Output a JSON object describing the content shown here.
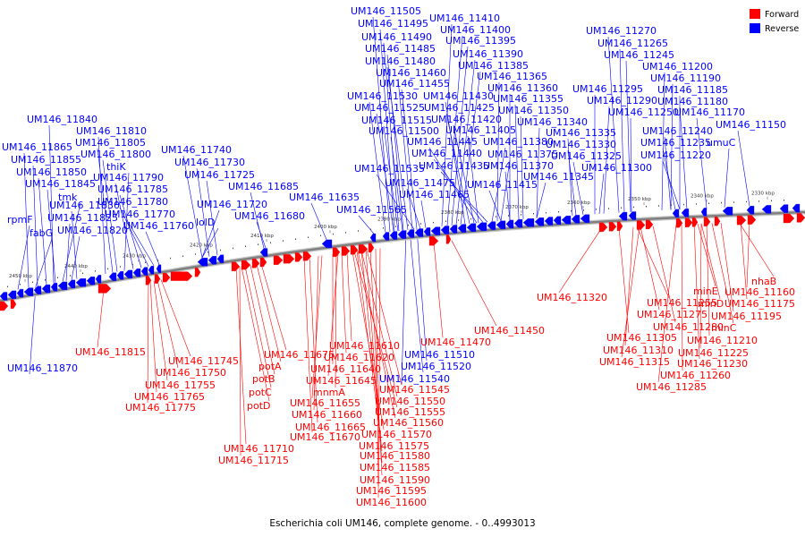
{
  "title": "Escherichia coli UM146, complete genome. - 0..4993013",
  "legend": {
    "forward": "Forward",
    "reverse": "Reverse"
  },
  "colors": {
    "forward": "#ff0000",
    "reverse": "#0000ff",
    "backbone": "#808080"
  },
  "ticks": [
    "2450 kbp",
    "2440 kbp",
    "2430 kbp",
    "2420 kbp",
    "2410 kbp",
    "2400 kbp",
    "2390 kbp",
    "2380 kbp",
    "2370 kbp",
    "2360 kbp",
    "2350 kbp",
    "2340 kbp",
    "2330 kbp"
  ],
  "reverse_labels": [
    "UM146_11840",
    "UM146_11865",
    "UM146_11855",
    "UM146_11850",
    "UM146_11845",
    "UM146_11830",
    "UM146_11825",
    "UM146_11820",
    "tmk",
    "fabG",
    "rpmF",
    "UM146_11810",
    "UM146_11805",
    "UM146_11800",
    "thiK",
    "UM146_11790",
    "UM146_11785",
    "UM146_11780",
    "UM146_11770",
    "UM146_11760",
    "UM146_11740",
    "UM146_11730",
    "UM146_11725",
    "UM146_11720",
    "lolD",
    "UM146_11685",
    "UM146_11680",
    "UM146_11635",
    "UM146_11565",
    "UM146_11505",
    "UM146_11495",
    "UM146_11490",
    "UM146_11485",
    "UM146_11480",
    "UM146_11460",
    "UM146_11455",
    "UM146_11530",
    "UM146_11525",
    "UM146_11515",
    "UM146_11500",
    "UM146_11535",
    "UM146_11475",
    "UM146_11465",
    "UM146_11410",
    "UM146_11400",
    "UM146_11395",
    "UM146_11390",
    "UM146_11385",
    "UM146_11365",
    "UM146_11360",
    "UM146_11355",
    "UM146_11350",
    "UM146_11430",
    "UM146_11425",
    "UM146_11420",
    "UM146_11405",
    "UM146_11445",
    "UM146_11440",
    "UM146_11435",
    "UM146_11380",
    "UM146_11375",
    "UM146_11370",
    "UM146_11415",
    "UM146_11345",
    "UM146_11340",
    "UM146_11270",
    "UM146_11265",
    "UM146_11245",
    "UM146_11200",
    "UM146_11190",
    "UM146_11185",
    "UM146_11180",
    "UM146_11170",
    "UM146_11295",
    "UM146_11290",
    "UM146_11250",
    "UM146_11335",
    "UM146_11330",
    "UM146_11325",
    "UM146_11300",
    "UM146_11240",
    "UM146_11235",
    "UM146_11220",
    "umuC",
    "UM146_11150",
    "UM146_11870",
    "UM146_11510",
    "UM146_11520",
    "UM146_11540"
  ],
  "forward_labels": [
    "UM146_11815",
    "UM146_11745",
    "UM146_11750",
    "UM146_11755",
    "UM146_11765",
    "UM146_11775",
    "UM146_11675",
    "potA",
    "potB",
    "potC",
    "potD",
    "UM146_11710",
    "UM146_11715",
    "UM146_11610",
    "UM146_11620",
    "UM146_11640",
    "UM146_11645",
    "mnmA",
    "UM146_11655",
    "UM146_11660",
    "UM146_11665",
    "UM146_11670",
    "UM146_11470",
    "UM146_11545",
    "UM146_11550",
    "UM146_11555",
    "UM146_11560",
    "UM146_11570",
    "UM146_11575",
    "UM146_11580",
    "UM146_11585",
    "UM146_11590",
    "UM146_11595",
    "UM146_11600",
    "UM146_11450",
    "UM146_11320",
    "UM146_11255",
    "UM146_11275",
    "UM146_11280",
    "UM146_11305",
    "UM146_11310",
    "UM146_11315",
    "minE",
    "minD",
    "minC",
    "UM146_11210",
    "UM146_11225",
    "UM146_11230",
    "UM146_11260",
    "UM146_11285",
    "nhaB",
    "UM146_11160",
    "UM146_11175",
    "UM146_11195"
  ]
}
